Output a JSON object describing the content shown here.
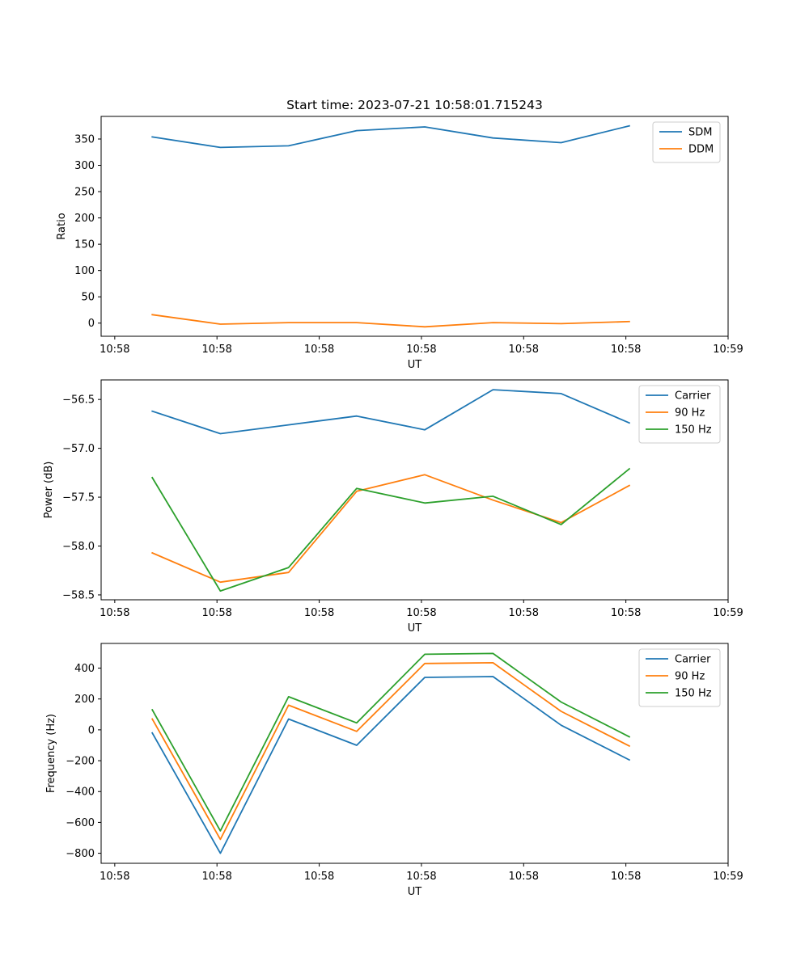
{
  "chart_data": [
    {
      "type": "line",
      "title": "Start time: 2023-07-21 10:58:01.715243",
      "xlabel": "UT",
      "ylabel": "Ratio",
      "x": [
        0,
        1,
        2,
        3,
        4,
        5,
        6,
        7
      ],
      "xlim": [
        -0.75,
        8.45
      ],
      "xticks": [
        -0.55,
        0.95,
        2.45,
        3.95,
        5.45,
        6.95,
        8.45
      ],
      "xtick_labels": [
        "10:58",
        "10:58",
        "10:58",
        "10:58",
        "10:58",
        "10:58",
        "10:59"
      ],
      "ylim": [
        -25,
        393
      ],
      "yticks": [
        0,
        50,
        100,
        150,
        200,
        250,
        300,
        350
      ],
      "ytick_labels": [
        "0",
        "50",
        "100",
        "150",
        "200",
        "250",
        "300",
        "350"
      ],
      "legend_position": "upper right",
      "series": [
        {
          "name": "SDM",
          "color": "#1f77b4",
          "values": [
            354,
            334,
            337,
            366,
            373,
            352,
            343,
            375
          ]
        },
        {
          "name": "DDM",
          "color": "#ff7f0e",
          "values": [
            16,
            -2,
            1,
            1,
            -7,
            1,
            -1,
            3
          ]
        }
      ]
    },
    {
      "type": "line",
      "title": "",
      "xlabel": "UT",
      "ylabel": "Power (dB)",
      "x": [
        0,
        1,
        2,
        3,
        4,
        5,
        6,
        7
      ],
      "xlim": [
        -0.75,
        8.45
      ],
      "xticks": [
        -0.55,
        0.95,
        2.45,
        3.95,
        5.45,
        6.95,
        8.45
      ],
      "xtick_labels": [
        "10:58",
        "10:58",
        "10:58",
        "10:58",
        "10:58",
        "10:58",
        "10:59"
      ],
      "ylim": [
        -58.55,
        -56.3
      ],
      "yticks": [
        -58.5,
        -58.0,
        -57.5,
        -57.0,
        -56.5
      ],
      "ytick_labels": [
        "−58.5",
        "−58.0",
        "−57.5",
        "−57.0",
        "−56.5"
      ],
      "legend_position": "upper right",
      "series": [
        {
          "name": "Carrier",
          "color": "#1f77b4",
          "values": [
            -56.62,
            -56.85,
            -56.76,
            -56.67,
            -56.81,
            -56.4,
            -56.44,
            -56.74
          ]
        },
        {
          "name": "90 Hz",
          "color": "#ff7f0e",
          "values": [
            -58.07,
            -58.37,
            -58.27,
            -57.44,
            -57.27,
            -57.53,
            -57.76,
            -57.38
          ]
        },
        {
          "name": "150 Hz",
          "color": "#2ca02c",
          "values": [
            -57.3,
            -58.46,
            -58.22,
            -57.41,
            -57.56,
            -57.49,
            -57.78,
            -57.21
          ]
        }
      ]
    },
    {
      "type": "line",
      "title": "",
      "xlabel": "UT",
      "ylabel": "Frequency (Hz)",
      "x": [
        0,
        1,
        2,
        3,
        4,
        5,
        6,
        7
      ],
      "xlim": [
        -0.75,
        8.45
      ],
      "xticks": [
        -0.55,
        0.95,
        2.45,
        3.95,
        5.45,
        6.95,
        8.45
      ],
      "xtick_labels": [
        "10:58",
        "10:58",
        "10:58",
        "10:58",
        "10:58",
        "10:58",
        "10:59"
      ],
      "ylim": [
        -865,
        560
      ],
      "yticks": [
        -800,
        -600,
        -400,
        -200,
        0,
        200,
        400
      ],
      "ytick_labels": [
        "−800",
        "−600",
        "−400",
        "−200",
        "0",
        "200",
        "400"
      ],
      "legend_position": "upper right",
      "series": [
        {
          "name": "Carrier",
          "color": "#1f77b4",
          "values": [
            -20,
            -800,
            70,
            -100,
            340,
            345,
            30,
            -195
          ]
        },
        {
          "name": "90 Hz",
          "color": "#ff7f0e",
          "values": [
            70,
            -710,
            160,
            -10,
            430,
            435,
            120,
            -105
          ]
        },
        {
          "name": "150 Hz",
          "color": "#2ca02c",
          "values": [
            130,
            -655,
            215,
            45,
            490,
            495,
            180,
            -45
          ]
        }
      ]
    }
  ]
}
